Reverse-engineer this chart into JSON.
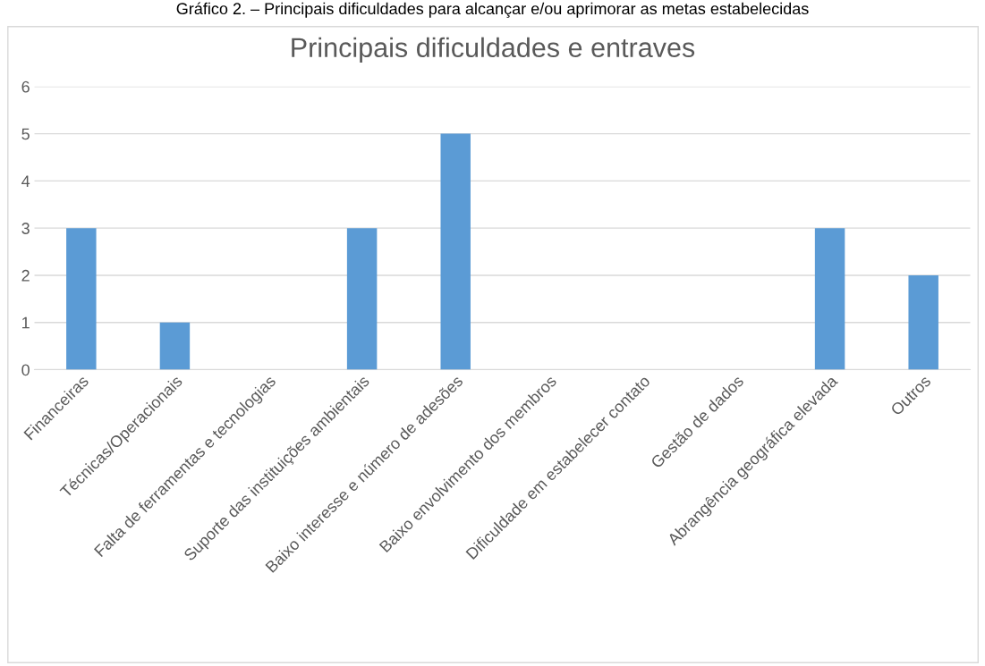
{
  "chart_data": {
    "type": "bar",
    "title": "Principais dificuldades e entraves",
    "annotations": [
      "Gráfico 2. – Principais dificuldades para alcançar e/ou aprimorar as metas estabelecidas"
    ],
    "categories": [
      "Financeiras",
      "Técnicas/Operacionais",
      "Falta de ferramentas e tecnologias",
      "Suporte das instituições ambientais",
      "Baixo interesse e número de adesões",
      "Baixo envolvimento dos membros",
      "Dificuldade em estabelecer contato",
      "Gestão de dados",
      "Abrangência geográfica elevada",
      "Outros"
    ],
    "values": [
      3,
      1,
      0,
      3,
      5,
      0,
      0,
      0,
      3,
      2
    ],
    "color": "#5b9bd5",
    "ylim": [
      0,
      6
    ],
    "yticks": [
      0,
      1,
      2,
      3,
      4,
      5,
      6
    ],
    "grid": "y",
    "legend": false
  }
}
